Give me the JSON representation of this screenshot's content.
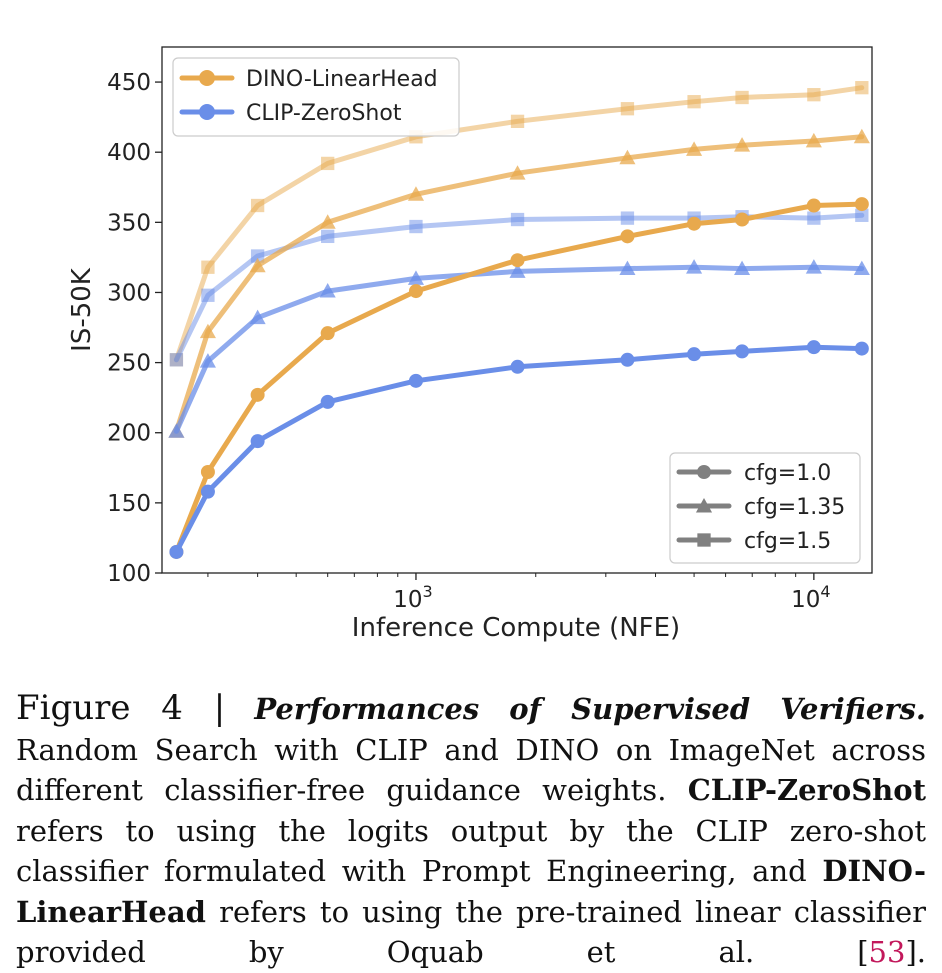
{
  "chart_data": {
    "type": "line",
    "xscale": "log",
    "xlim": [
      230,
      14000
    ],
    "ylim": [
      100,
      475
    ],
    "xlabel": "Inference Compute (NFE)",
    "ylabel": "IS-50K",
    "yticks": [
      100,
      150,
      200,
      250,
      300,
      350,
      400,
      450
    ],
    "xticks": [
      {
        "value": 1000,
        "base": "10",
        "exp": "3"
      },
      {
        "value": 10000,
        "base": "10",
        "exp": "4"
      }
    ],
    "grid": false,
    "x": [
      250,
      300,
      400,
      600,
      1000,
      1800,
      3400,
      5000,
      6600,
      10000,
      13200
    ],
    "series": [
      {
        "verifier": "DINO-LinearHead",
        "cfg": "1.0",
        "color": "#e8a94d",
        "marker": "circle",
        "alpha": 1.0,
        "values": [
          115,
          172,
          227,
          271,
          301,
          323,
          340,
          349,
          352,
          362,
          363
        ]
      },
      {
        "verifier": "DINO-LinearHead",
        "cfg": "1.35",
        "color": "#e8a94d",
        "marker": "triangle",
        "alpha": 0.75,
        "values": [
          201,
          272,
          319,
          350,
          370,
          385,
          396,
          402,
          405,
          408,
          411
        ]
      },
      {
        "verifier": "DINO-LinearHead",
        "cfg": "1.5",
        "color": "#e8a94d",
        "marker": "square",
        "alpha": 0.5,
        "values": [
          252,
          318,
          362,
          392,
          411,
          422,
          431,
          436,
          439,
          441,
          446
        ]
      },
      {
        "verifier": "CLIP-ZeroShot",
        "cfg": "1.0",
        "color": "#6a8ee8",
        "marker": "circle",
        "alpha": 1.0,
        "values": [
          115,
          158,
          194,
          222,
          237,
          247,
          252,
          256,
          258,
          261,
          260
        ]
      },
      {
        "verifier": "CLIP-ZeroShot",
        "cfg": "1.35",
        "color": "#6a8ee8",
        "marker": "triangle",
        "alpha": 0.75,
        "values": [
          201,
          251,
          282,
          301,
          310,
          315,
          317,
          318,
          317,
          318,
          317
        ]
      },
      {
        "verifier": "CLIP-ZeroShot",
        "cfg": "1.5",
        "color": "#6a8ee8",
        "marker": "square",
        "alpha": 0.5,
        "values": [
          252,
          298,
          326,
          340,
          347,
          352,
          353,
          353,
          354,
          353,
          355
        ]
      }
    ],
    "legend_verifier": {
      "placement": "top-left",
      "entries": [
        {
          "label": "DINO-LinearHead",
          "color": "#e8a94d"
        },
        {
          "label": "CLIP-ZeroShot",
          "color": "#6a8ee8"
        }
      ]
    },
    "legend_cfg": {
      "placement": "bottom-right",
      "color": "#808080",
      "entries": [
        {
          "label": "cfg=1.0",
          "marker": "circle"
        },
        {
          "label": "cfg=1.35",
          "marker": "triangle"
        },
        {
          "label": "cfg=1.5",
          "marker": "square"
        }
      ]
    }
  },
  "caption": {
    "figure_label": "Figure 4 |",
    "title": "Performances of Supervised Verifiers.",
    "text_1": "Random Search with CLIP and DINO on ImageNet across different classifier-free guidance weights.",
    "term_clip": "CLIP-ZeroShot",
    "text_2": "refers to using the logits output by the CLIP zero-shot classifier formulated with Prompt Engineering, and",
    "term_dino": "DINO-LinearHead",
    "text_3": "refers to using the pre-trained linear classifier provided by Oquab et al. [",
    "ref": "53",
    "text_4": "]."
  }
}
